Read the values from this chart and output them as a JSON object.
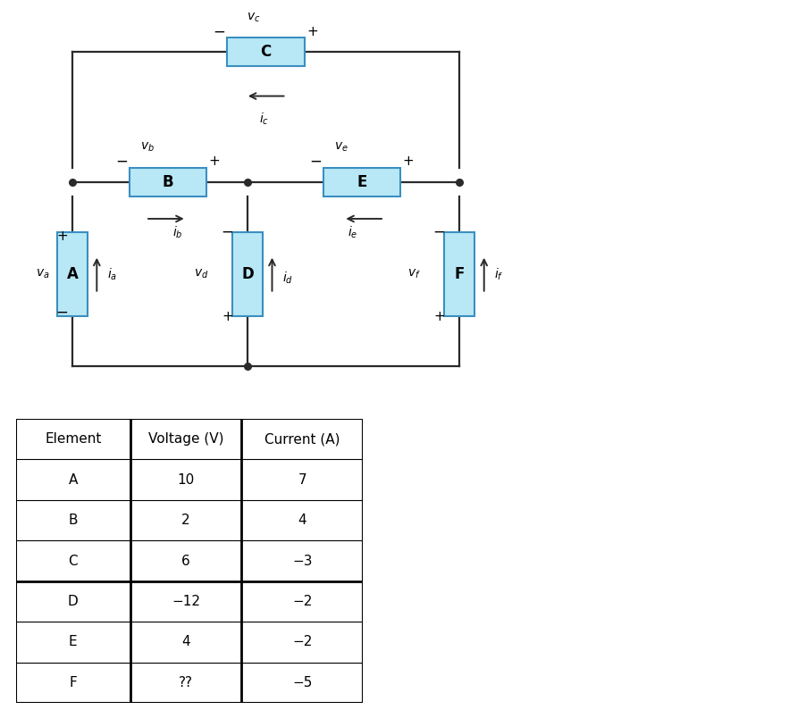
{
  "bg_color": "#ffffff",
  "box_fill": "#b8e8f5",
  "box_edge": "#3a8fc0",
  "wire_color": "#2a2a2a",
  "fig_width": 8.83,
  "fig_height": 7.95,
  "table_header": [
    "Element",
    "Voltage (V)",
    "Current (A)"
  ],
  "table_data": [
    [
      "A",
      "10",
      "7"
    ],
    [
      "B",
      "2",
      "4"
    ],
    [
      "C",
      "6",
      "−3"
    ],
    [
      "D",
      "−12",
      "−2"
    ],
    [
      "E",
      "4",
      "−2"
    ],
    [
      "F",
      "??",
      "−5"
    ]
  ]
}
